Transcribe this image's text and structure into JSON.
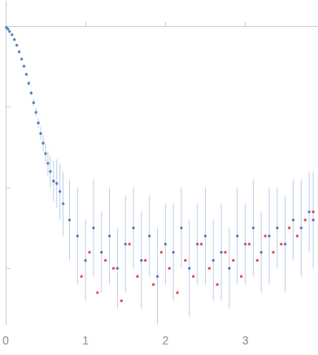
{
  "chart_data": {
    "type": "scatter",
    "xlim": [
      0,
      3.9
    ],
    "xticks": [
      0,
      1,
      2,
      3
    ],
    "ylim": [
      -3.7,
      0.3
    ],
    "yticks": [
      -3,
      -2,
      -1
    ],
    "tick_labels": "x",
    "grid": false,
    "series": [
      {
        "color": "#3a66b8",
        "marker": "circle",
        "x": [
          0.01,
          0.03,
          0.05,
          0.08,
          0.11,
          0.14,
          0.17,
          0.2,
          0.23,
          0.26,
          0.29,
          0.32,
          0.35,
          0.38,
          0.41,
          0.44,
          0.47,
          0.5,
          0.53,
          0.56,
          0.6,
          0.64,
          0.68,
          0.72,
          0.8,
          0.9,
          1.0,
          1.1,
          1.2,
          1.3,
          1.4,
          1.5,
          1.6,
          1.7,
          1.8,
          1.9,
          2.0,
          2.1,
          2.2,
          2.3,
          2.4,
          2.5,
          2.6,
          2.7,
          2.8,
          2.9,
          3.0,
          3.1,
          3.2,
          3.3,
          3.4,
          3.5,
          3.6,
          3.7,
          3.8,
          3.85
        ],
        "values": [
          -0.02,
          -0.04,
          -0.07,
          -0.11,
          -0.17,
          -0.24,
          -0.32,
          -0.41,
          -0.5,
          -0.6,
          -0.71,
          -0.83,
          -0.95,
          -1.07,
          -1.2,
          -1.33,
          -1.45,
          -1.58,
          -1.7,
          -1.8,
          -1.92,
          -1.95,
          -2.05,
          -2.2,
          -2.4,
          -2.6,
          -2.9,
          -2.5,
          -2.8,
          -2.6,
          -3.0,
          -2.7,
          -2.5,
          -2.9,
          -2.6,
          -3.1,
          -2.7,
          -2.8,
          -2.5,
          -3.0,
          -2.7,
          -2.6,
          -2.9,
          -2.8,
          -3.0,
          -2.6,
          -2.7,
          -2.5,
          -2.8,
          -2.6,
          -2.5,
          -2.7,
          -2.4,
          -2.5,
          -2.3,
          -2.4
        ],
        "errors": [
          0.01,
          0.01,
          0.01,
          0.01,
          0.01,
          0.01,
          0.01,
          0.01,
          0.02,
          0.02,
          0.03,
          0.03,
          0.04,
          0.05,
          0.06,
          0.08,
          0.1,
          0.12,
          0.15,
          0.2,
          0.25,
          0.3,
          0.35,
          0.4,
          0.5,
          0.6,
          0.5,
          0.6,
          0.5,
          0.6,
          0.5,
          0.6,
          0.5,
          0.6,
          0.5,
          0.6,
          0.5,
          0.6,
          0.5,
          0.6,
          0.5,
          0.6,
          0.5,
          0.6,
          0.5,
          0.6,
          0.5,
          0.6,
          0.5,
          0.6,
          0.5,
          0.6,
          0.5,
          0.6,
          0.5,
          0.6
        ],
        "error_color": "#bccde9"
      },
      {
        "color": "#e0262c",
        "marker": "circle",
        "x": [
          0.95,
          1.05,
          1.15,
          1.25,
          1.35,
          1.45,
          1.55,
          1.65,
          1.75,
          1.85,
          1.95,
          2.05,
          2.15,
          2.25,
          2.35,
          2.45,
          2.55,
          2.65,
          2.75,
          2.85,
          2.95,
          3.05,
          3.15,
          3.25,
          3.35,
          3.45,
          3.55,
          3.65,
          3.75,
          3.85
        ],
        "values": [
          -3.1,
          -2.8,
          -3.3,
          -2.9,
          -3.0,
          -3.4,
          -2.7,
          -3.1,
          -2.9,
          -3.2,
          -2.8,
          -3.0,
          -3.3,
          -2.9,
          -3.1,
          -2.7,
          -3.0,
          -3.2,
          -2.8,
          -2.9,
          -3.1,
          -2.7,
          -2.9,
          -2.6,
          -2.8,
          -2.7,
          -2.5,
          -2.6,
          -2.4,
          -2.3
        ]
      }
    ]
  }
}
